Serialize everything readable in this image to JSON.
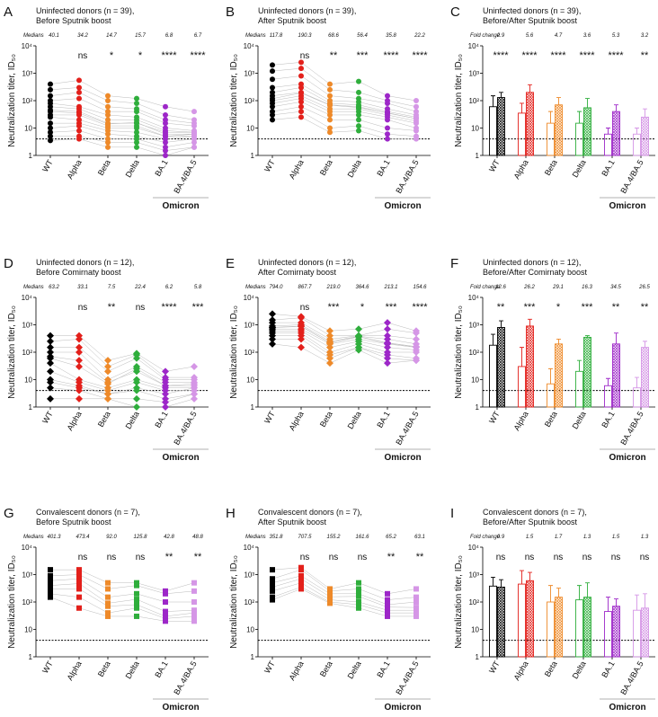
{
  "chart_data": [
    {
      "type": "strip",
      "panel": "A",
      "title_lines": [
        "Uninfected donors (n = 39),",
        "Before Sputnik boost"
      ],
      "stat_label": "Medians",
      "stat_values": [
        40.1,
        34.2,
        14.7,
        15.7,
        6.8,
        6.7
      ],
      "sig": [
        null,
        "ns",
        "*",
        "*",
        "****",
        "****"
      ],
      "marker": "circle",
      "ylabel": "Neutralization titer, ID₅₀",
      "yscale": "log",
      "ylim": [
        1,
        10000
      ],
      "yticks": [
        1,
        10,
        {
          "value": 100,
          "label": "10²"
        },
        {
          "value": 1000,
          "label": "10³"
        },
        {
          "value": 10000,
          "label": "10⁴"
        }
      ],
      "threshold": 4,
      "categories": [
        "WT",
        "Alpha",
        "Beta",
        "Delta",
        "BA.1",
        "BA.4/BA.5"
      ],
      "group_label": "Omicron",
      "colors": [
        "#000000",
        "#e3201b",
        "#ee8a2a",
        "#2fae3c",
        "#9d27c8",
        "#d596e6"
      ],
      "donors": [
        [
          400,
          550,
          150,
          120,
          60,
          40
        ],
        [
          250,
          300,
          100,
          80,
          30,
          20
        ],
        [
          150,
          200,
          60,
          50,
          20,
          15
        ],
        [
          100,
          120,
          40,
          40,
          15,
          12
        ],
        [
          80,
          60,
          30,
          25,
          10,
          8
        ],
        [
          60,
          50,
          20,
          20,
          8,
          7
        ],
        [
          45,
          40,
          15,
          15,
          7,
          7
        ],
        [
          40,
          35,
          14,
          16,
          6,
          6
        ],
        [
          30,
          30,
          12,
          12,
          5,
          6
        ],
        [
          25,
          20,
          10,
          10,
          5,
          5
        ],
        [
          15,
          15,
          8,
          7,
          4,
          5
        ],
        [
          10,
          12,
          6,
          5,
          3,
          4
        ],
        [
          7,
          8,
          4,
          4,
          2,
          3
        ],
        [
          5,
          5,
          3,
          3,
          1.5,
          2
        ],
        [
          3.5,
          4,
          2,
          2,
          1,
          2
        ]
      ]
    },
    {
      "type": "strip",
      "panel": "B",
      "title_lines": [
        "Uninfected donors (n = 39),",
        "After Sputnik boost"
      ],
      "stat_label": "Medians",
      "stat_values": [
        117.8,
        190.3,
        68.6,
        56.4,
        35.8,
        22.2
      ],
      "sig": [
        null,
        "ns",
        "**",
        "***",
        "****",
        "****"
      ],
      "marker": "circle",
      "ylabel": "Neutralization titer, ID₅₀",
      "yscale": "log",
      "ylim": [
        1,
        10000
      ],
      "yticks": [
        1,
        10,
        {
          "value": 100,
          "label": "10²"
        },
        {
          "value": 1000,
          "label": "10³"
        },
        {
          "value": 10000,
          "label": "10⁴"
        }
      ],
      "threshold": 4,
      "categories": [
        "WT",
        "Alpha",
        "Beta",
        "Delta",
        "BA.1",
        "BA.4/BA.5"
      ],
      "group_label": "Omicron",
      "colors": [
        "#000000",
        "#e3201b",
        "#ee8a2a",
        "#2fae3c",
        "#9d27c8",
        "#d596e6"
      ],
      "donors": [
        [
          2000,
          2500,
          400,
          500,
          150,
          100
        ],
        [
          1200,
          1500,
          250,
          200,
          100,
          60
        ],
        [
          600,
          800,
          150,
          120,
          80,
          40
        ],
        [
          300,
          400,
          100,
          90,
          50,
          30
        ],
        [
          200,
          300,
          80,
          70,
          40,
          25
        ],
        [
          150,
          200,
          70,
          60,
          35,
          22
        ],
        [
          118,
          190,
          68,
          56,
          36,
          22
        ],
        [
          100,
          150,
          50,
          50,
          30,
          18
        ],
        [
          80,
          120,
          40,
          40,
          25,
          15
        ],
        [
          60,
          90,
          30,
          30,
          20,
          10
        ],
        [
          40,
          60,
          20,
          20,
          10,
          8
        ],
        [
          30,
          40,
          10,
          12,
          6,
          5
        ],
        [
          20,
          25,
          7,
          8,
          4,
          4
        ]
      ]
    },
    {
      "type": "bar",
      "panel": "C",
      "title_lines": [
        "Uninfected donors (n = 39),",
        "Before/After Sputnik boost"
      ],
      "stat_label": "Fold change",
      "stat_values": [
        2.9,
        5.6,
        4.7,
        3.6,
        5.3,
        3.2
      ],
      "sig": [
        "****",
        "****",
        "****",
        "****",
        "****",
        "**"
      ],
      "ylabel": "Neutralization titer, ID₅₀",
      "yscale": "log",
      "ylim": [
        1,
        10000
      ],
      "yticks": [
        1,
        10,
        {
          "value": 100,
          "label": "10²"
        },
        {
          "value": 1000,
          "label": "10³"
        },
        {
          "value": 10000,
          "label": "10⁴"
        }
      ],
      "threshold": 4,
      "categories": [
        "WT",
        "Alpha",
        "Beta",
        "Delta",
        "BA.1",
        "BA.4/BA.5"
      ],
      "group_label": "Omicron",
      "colors": [
        "#000000",
        "#e3201b",
        "#ee8a2a",
        "#2fae3c",
        "#9d27c8",
        "#d596e6"
      ],
      "before_values": [
        60,
        35,
        15,
        15,
        6,
        6
      ],
      "before_errors": [
        90,
        45,
        25,
        25,
        4,
        4
      ],
      "after_values": [
        130,
        200,
        70,
        55,
        40,
        25
      ],
      "after_errors": [
        70,
        180,
        60,
        65,
        30,
        25
      ]
    },
    {
      "type": "strip",
      "panel": "D",
      "title_lines": [
        "Uninfected donors (n = 12),",
        "Before Comirnaty boost"
      ],
      "stat_label": "Medians",
      "stat_values": [
        63.2,
        33.1,
        7.5,
        22.4,
        6.2,
        5.8
      ],
      "sig": [
        null,
        "ns",
        "**",
        "ns",
        "****",
        "***"
      ],
      "marker": "diamond",
      "ylabel": "Neutralization titer, ID₅₀",
      "yscale": "log",
      "ylim": [
        1,
        10000
      ],
      "yticks": [
        1,
        10,
        {
          "value": 100,
          "label": "10²"
        },
        {
          "value": 1000,
          "label": "10³"
        },
        {
          "value": 10000,
          "label": "10⁴"
        }
      ],
      "threshold": 4,
      "categories": [
        "WT",
        "Alpha",
        "Beta",
        "Delta",
        "BA.1",
        "BA.4/BA.5"
      ],
      "group_label": "Omicron",
      "colors": [
        "#000000",
        "#e3201b",
        "#ee8a2a",
        "#2fae3c",
        "#9d27c8",
        "#d596e6"
      ],
      "donors": [
        [
          400,
          400,
          50,
          90,
          20,
          30
        ],
        [
          250,
          300,
          30,
          80,
          12,
          12
        ],
        [
          150,
          150,
          20,
          60,
          10,
          10
        ],
        [
          100,
          100,
          10,
          30,
          8,
          8
        ],
        [
          70,
          50,
          8,
          20,
          6,
          7
        ],
        [
          60,
          30,
          7,
          25,
          6,
          6
        ],
        [
          40,
          10,
          5,
          10,
          5,
          5
        ],
        [
          20,
          8,
          4,
          8,
          4,
          4
        ],
        [
          10,
          6,
          3,
          5,
          3,
          5
        ],
        [
          8,
          5,
          3,
          4,
          2,
          3
        ],
        [
          5,
          4,
          2,
          2,
          1.5,
          3
        ],
        [
          2,
          2,
          2,
          1,
          1,
          2
        ]
      ]
    },
    {
      "type": "strip",
      "panel": "E",
      "title_lines": [
        "Uninfected donors (n = 12),",
        "After Comirnaty boost"
      ],
      "stat_label": "Medians",
      "stat_values": [
        794,
        867.7,
        219,
        364.6,
        213.1,
        154.6
      ],
      "stat_value_labels": [
        "794.0",
        "867.7",
        "219.0",
        "364.6",
        "213.1",
        "154.6"
      ],
      "sig": [
        null,
        "ns",
        "***",
        "*",
        "***",
        "****"
      ],
      "marker": "diamond",
      "ylabel": "Neutralization titer, ID₅₀",
      "yscale": "log",
      "ylim": [
        1,
        10000
      ],
      "yticks": [
        1,
        10,
        {
          "value": 100,
          "label": "10²"
        },
        {
          "value": 1000,
          "label": "10³"
        },
        {
          "value": 10000,
          "label": "10⁴"
        }
      ],
      "threshold": 4,
      "categories": [
        "WT",
        "Alpha",
        "Beta",
        "Delta",
        "BA.1",
        "BA.4/BA.5"
      ],
      "group_label": "Omicron",
      "colors": [
        "#000000",
        "#e3201b",
        "#ee8a2a",
        "#2fae3c",
        "#9d27c8",
        "#d596e6"
      ],
      "donors": [
        [
          2500,
          2000,
          600,
          700,
          1200,
          600
        ],
        [
          1500,
          1800,
          400,
          400,
          700,
          500
        ],
        [
          1200,
          1200,
          300,
          400,
          400,
          300
        ],
        [
          900,
          1000,
          250,
          380,
          300,
          200
        ],
        [
          800,
          900,
          220,
          370,
          220,
          160
        ],
        [
          790,
          870,
          219,
          365,
          213,
          155
        ],
        [
          700,
          700,
          200,
          300,
          200,
          150
        ],
        [
          600,
          600,
          150,
          250,
          150,
          120
        ],
        [
          500,
          500,
          100,
          200,
          100,
          100
        ],
        [
          400,
          400,
          80,
          150,
          80,
          60
        ],
        [
          300,
          300,
          60,
          150,
          60,
          50
        ],
        [
          200,
          150,
          40,
          120,
          40,
          50
        ]
      ]
    },
    {
      "type": "bar",
      "panel": "F",
      "title_lines": [
        "Uninfected donors (n = 12),",
        "Before/After Comirnaty boost"
      ],
      "stat_label": "Fold change",
      "stat_values": [
        12.6,
        26.2,
        29.1,
        16.3,
        34.5,
        26.5
      ],
      "sig": [
        "**",
        "***",
        "*",
        "***",
        "**",
        "**"
      ],
      "ylabel": "Neutralization titer, ID₅₀",
      "yscale": "log",
      "ylim": [
        1,
        10000
      ],
      "yticks": [
        1,
        10,
        {
          "value": 100,
          "label": "10²"
        },
        {
          "value": 1000,
          "label": "10³"
        },
        {
          "value": 10000,
          "label": "10⁴"
        }
      ],
      "threshold": 4,
      "categories": [
        "WT",
        "Alpha",
        "Beta",
        "Delta",
        "BA.1",
        "BA.4/BA.5"
      ],
      "group_label": "Omicron",
      "colors": [
        "#000000",
        "#e3201b",
        "#ee8a2a",
        "#2fae3c",
        "#9d27c8",
        "#d596e6"
      ],
      "before_values": [
        180,
        30,
        7,
        20,
        6,
        5
      ],
      "before_errors": [
        270,
        120,
        18,
        30,
        5,
        7
      ],
      "after_values": [
        800,
        900,
        200,
        350,
        200,
        150
      ],
      "after_errors": [
        600,
        700,
        100,
        50,
        300,
        100
      ]
    },
    {
      "type": "strip",
      "panel": "G",
      "title_lines": [
        "Convalescent donors (n = 7),",
        "Before Sputnik boost"
      ],
      "stat_label": "Medians",
      "stat_values": [
        401.3,
        473.4,
        92,
        125.8,
        42.8,
        48.8
      ],
      "stat_value_labels": [
        "401.3",
        "473.4",
        "92.0",
        "125.8",
        "42.8",
        "48.8"
      ],
      "sig": [
        null,
        "ns",
        "ns",
        "ns",
        "**",
        "**"
      ],
      "marker": "square",
      "ylabel": "Neutralization titer, ID₅₀",
      "yscale": "log",
      "ylim": [
        1,
        10000
      ],
      "yticks": [
        1,
        10,
        {
          "value": 100,
          "label": "10²"
        },
        {
          "value": 1000,
          "label": "10³"
        },
        {
          "value": 10000,
          "label": "10⁴"
        }
      ],
      "threshold": 4,
      "categories": [
        "WT",
        "Alpha",
        "Beta",
        "Delta",
        "BA.1",
        "BA.4/BA.5"
      ],
      "group_label": "Omicron",
      "colors": [
        "#000000",
        "#e3201b",
        "#ee8a2a",
        "#2fae3c",
        "#9d27c8",
        "#d596e6"
      ],
      "donors": [
        [
          1500,
          1500,
          500,
          500,
          250,
          500
        ],
        [
          900,
          1000,
          300,
          400,
          200,
          250
        ],
        [
          600,
          700,
          150,
          200,
          100,
          100
        ],
        [
          400,
          470,
          90,
          125,
          45,
          50
        ],
        [
          300,
          300,
          70,
          80,
          30,
          40
        ],
        [
          200,
          150,
          40,
          60,
          25,
          30
        ],
        [
          150,
          60,
          30,
          30,
          20,
          20
        ]
      ]
    },
    {
      "type": "strip",
      "panel": "H",
      "title_lines": [
        "Convalescent donors (n = 7),",
        "After Sputnik boost"
      ],
      "stat_label": "Medians",
      "stat_values": [
        351.8,
        707.5,
        155.2,
        161.6,
        65.2,
        63.1
      ],
      "sig": [
        null,
        "ns",
        "ns",
        "ns",
        "**",
        "**"
      ],
      "marker": "square",
      "ylabel": "Neutralization titer, ID₅₀",
      "yscale": "log",
      "ylim": [
        1,
        10000
      ],
      "yticks": [
        1,
        10,
        {
          "value": 100,
          "label": "10²"
        },
        {
          "value": 1000,
          "label": "10³"
        },
        {
          "value": 10000,
          "label": "10⁴"
        }
      ],
      "threshold": 4,
      "categories": [
        "WT",
        "Alpha",
        "Beta",
        "Delta",
        "BA.1",
        "BA.4/BA.5"
      ],
      "group_label": "Omicron",
      "colors": [
        "#000000",
        "#e3201b",
        "#ee8a2a",
        "#2fae3c",
        "#9d27c8",
        "#d596e6"
      ],
      "donors": [
        [
          1500,
          1800,
          300,
          500,
          200,
          300
        ],
        [
          700,
          1500,
          250,
          300,
          120,
          150
        ],
        [
          500,
          900,
          200,
          200,
          80,
          100
        ],
        [
          350,
          700,
          155,
          160,
          65,
          63
        ],
        [
          250,
          500,
          120,
          100,
          50,
          50
        ],
        [
          150,
          350,
          100,
          80,
          40,
          40
        ],
        [
          120,
          300,
          90,
          60,
          30,
          30
        ]
      ]
    },
    {
      "type": "bar",
      "panel": "I",
      "title_lines": [
        "Convalescent donors (n = 7),",
        "Before/After Sputnik boost"
      ],
      "stat_label": "Fold change",
      "stat_values": [
        0.9,
        1.5,
        1.7,
        1.3,
        1.5,
        1.3
      ],
      "sig": [
        "ns",
        "ns",
        "ns",
        "ns",
        "ns",
        "ns"
      ],
      "ylabel": "Neutralization titer, ID₅₀",
      "yscale": "log",
      "ylim": [
        1,
        10000
      ],
      "yticks": [
        1,
        10,
        {
          "value": 100,
          "label": "10²"
        },
        {
          "value": 1000,
          "label": "10³"
        },
        {
          "value": 10000,
          "label": "10⁴"
        }
      ],
      "threshold": 4,
      "categories": [
        "WT",
        "Alpha",
        "Beta",
        "Delta",
        "BA.1",
        "BA.4/BA.5"
      ],
      "group_label": "Omicron",
      "colors": [
        "#000000",
        "#e3201b",
        "#ee8a2a",
        "#2fae3c",
        "#9d27c8",
        "#d596e6"
      ],
      "before_values": [
        380,
        450,
        100,
        120,
        45,
        50
      ],
      "before_errors": [
        420,
        950,
        300,
        280,
        105,
        130
      ],
      "after_values": [
        350,
        600,
        150,
        150,
        70,
        60
      ],
      "after_errors": [
        300,
        600,
        170,
        350,
        60,
        140
      ]
    }
  ]
}
